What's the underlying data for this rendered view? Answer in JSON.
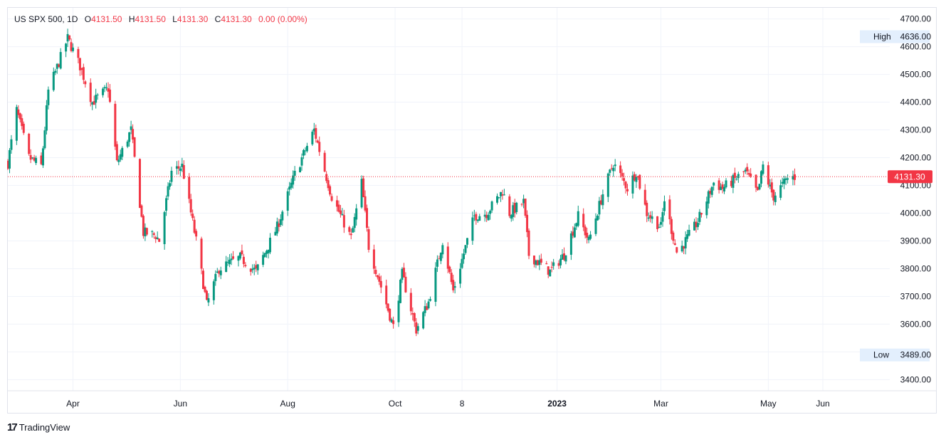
{
  "legend": {
    "symbol": "US SPX 500, 1D",
    "open_key": "O",
    "open": "4131.50",
    "high_key": "H",
    "high": "4131.50",
    "low_key": "L",
    "low": "4131.30",
    "close_key": "C",
    "close": "4131.30",
    "change": "0.00 (0.00%)"
  },
  "brand": {
    "name": "TradingView"
  },
  "colors": {
    "up": "#089981",
    "down": "#f23645",
    "grid": "#f0f3fa",
    "axis_text": "#131722",
    "marker_bg": "#e3effd"
  },
  "markers": {
    "high": {
      "label": "High",
      "value": "4636.00"
    },
    "low": {
      "label": "Low",
      "value": "3489.00"
    },
    "last": {
      "value": "4131.30"
    }
  },
  "chart_data": {
    "type": "candlestick",
    "ylim": [
      3360,
      4740
    ],
    "y_ticks": [
      3400,
      3500,
      3600,
      3700,
      3800,
      3900,
      4000,
      4100,
      4200,
      4300,
      4400,
      4500,
      4600,
      4700
    ],
    "y_tick_labels": [
      "3400.00",
      "",
      "3600.00",
      "3700.00",
      "3800.00",
      "3900.00",
      "4000.00",
      "4100.00",
      "4200.00",
      "4300.00",
      "4400.00",
      "4500.00",
      "4600.00",
      "4700.00"
    ],
    "x_ticks": [
      {
        "label": "Apr",
        "date": "2022-04-01",
        "bold": false
      },
      {
        "label": "Jun",
        "date": "2022-06-01",
        "bold": false
      },
      {
        "label": "Aug",
        "date": "2022-08-01",
        "bold": false
      },
      {
        "label": "Oct",
        "date": "2022-10-01",
        "bold": false
      },
      {
        "label": "8",
        "date": "2022-11-08",
        "bold": false
      },
      {
        "label": "2023",
        "date": "2023-01-01",
        "bold": true
      },
      {
        "label": "Mar",
        "date": "2023-03-01",
        "bold": false
      },
      {
        "label": "May",
        "date": "2023-05-01",
        "bold": false
      },
      {
        "label": "Jun",
        "date": "2023-06-01",
        "bold": false
      }
    ],
    "x_range": [
      "2022-02-23",
      "2023-07-09"
    ],
    "last_price": 4131.3,
    "high": 4636.0,
    "low": 3489.0,
    "anchors": [
      [
        "2022-02-23",
        4180
      ],
      [
        "2022-02-28",
        4370
      ],
      [
        "2022-03-07",
        4200
      ],
      [
        "2022-03-14",
        4170
      ],
      [
        "2022-03-18",
        4440
      ],
      [
        "2022-03-29",
        4630
      ],
      [
        "2022-04-05",
        4530
      ],
      [
        "2022-04-12",
        4400
      ],
      [
        "2022-04-21",
        4450
      ],
      [
        "2022-04-26",
        4180
      ],
      [
        "2022-05-04",
        4300
      ],
      [
        "2022-05-11",
        3930
      ],
      [
        "2022-05-18",
        3920
      ],
      [
        "2022-05-20",
        3900
      ],
      [
        "2022-05-27",
        4150
      ],
      [
        "2022-06-02",
        4170
      ],
      [
        "2022-06-10",
        3900
      ],
      [
        "2022-06-16",
        3670
      ],
      [
        "2022-06-23",
        3800
      ],
      [
        "2022-07-05",
        3840
      ],
      [
        "2022-07-14",
        3790
      ],
      [
        "2022-07-26",
        3950
      ],
      [
        "2022-08-05",
        4140
      ],
      [
        "2022-08-16",
        4300
      ],
      [
        "2022-08-23",
        4130
      ],
      [
        "2022-08-26",
        4060
      ],
      [
        "2022-09-06",
        3910
      ],
      [
        "2022-09-12",
        4110
      ],
      [
        "2022-09-16",
        3880
      ],
      [
        "2022-09-30",
        3590
      ],
      [
        "2022-10-05",
        3780
      ],
      [
        "2022-10-13",
        3580
      ],
      [
        "2022-10-20",
        3680
      ],
      [
        "2022-10-28",
        3900
      ],
      [
        "2022-11-03",
        3720
      ],
      [
        "2022-11-15",
        3990
      ],
      [
        "2022-11-22",
        4000
      ],
      [
        "2022-12-01",
        4080
      ],
      [
        "2022-12-05",
        4000
      ],
      [
        "2022-12-13",
        4040
      ],
      [
        "2022-12-16",
        3850
      ],
      [
        "2022-12-28",
        3790
      ],
      [
        "2023-01-05",
        3850
      ],
      [
        "2023-01-13",
        3990
      ],
      [
        "2023-01-19",
        3900
      ],
      [
        "2023-01-27",
        4070
      ],
      [
        "2023-02-02",
        4180
      ],
      [
        "2023-02-10",
        4090
      ],
      [
        "2023-02-15",
        4150
      ],
      [
        "2023-02-21",
        4000
      ],
      [
        "2023-03-01",
        3950
      ],
      [
        "2023-03-03",
        4050
      ],
      [
        "2023-03-10",
        3860
      ],
      [
        "2023-03-13",
        3880
      ],
      [
        "2023-03-22",
        3970
      ],
      [
        "2023-03-31",
        4110
      ],
      [
        "2023-04-05",
        4090
      ],
      [
        "2023-04-18",
        4150
      ],
      [
        "2023-04-25",
        4070
      ],
      [
        "2023-04-28",
        4170
      ],
      [
        "2023-05-02",
        4090
      ],
      [
        "2023-05-04",
        4060
      ],
      [
        "2023-05-12",
        4125
      ],
      [
        "2023-05-16",
        4131.3
      ]
    ]
  }
}
